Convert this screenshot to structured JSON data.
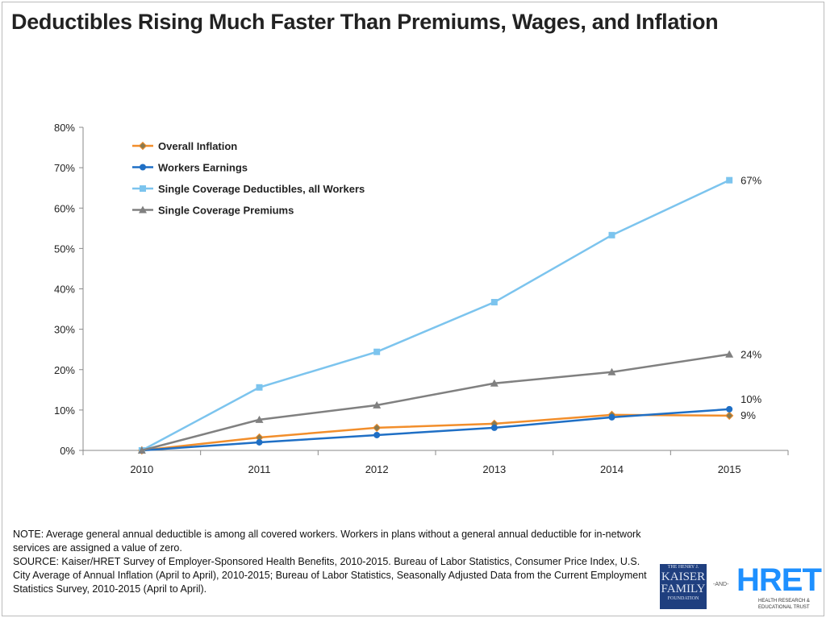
{
  "chart_data": {
    "type": "line",
    "title": "Deductibles Rising Much Faster Than Premiums, Wages, and Inflation",
    "categories": [
      "2010",
      "2011",
      "2012",
      "2013",
      "2014",
      "2015"
    ],
    "ylim": [
      0,
      80
    ],
    "yticks": [
      "0%",
      "10%",
      "20%",
      "30%",
      "40%",
      "50%",
      "60%",
      "70%",
      "80%"
    ],
    "grid": false,
    "legend_placement": "top-left",
    "series": [
      {
        "name": "Overall Inflation",
        "color": "#f28e2b",
        "marker": "diamond",
        "values": [
          0,
          3.2,
          5.6,
          6.6,
          8.8,
          8.6
        ],
        "end_label": "9%"
      },
      {
        "name": "Workers Earnings",
        "color": "#1f6fc5",
        "marker": "circle",
        "values": [
          0,
          2.0,
          3.8,
          5.6,
          8.2,
          10.2
        ],
        "end_label": "10%"
      },
      {
        "name": "Single Coverage Deductibles, all Workers",
        "color": "#7cc4ee",
        "marker": "square",
        "values": [
          0,
          15.6,
          24.4,
          36.7,
          53.3,
          66.9
        ],
        "end_label": "67%"
      },
      {
        "name": "Single Coverage Premiums",
        "color": "#808080",
        "marker": "triangle",
        "values": [
          0,
          7.6,
          11.2,
          16.6,
          19.4,
          23.8
        ],
        "end_label": "24%"
      }
    ]
  },
  "notes": {
    "note": "NOTE:  Average general annual deductible  is among  all covered workers. Workers in plans without a general annual deductible for in-network services are assigned a value of zero.",
    "source": "SOURCE:  Kaiser/HRET Survey of Employer-Sponsored Health Benefits, 2010-2015.  Bureau of Labor Statistics, Consumer Price Index, U.S. City Average of Annual Inflation (April to April), 2010-2015; Bureau of Labor Statistics, Seasonally Adjusted Data from the Current Employment Statistics Survey, 2010-2015 (April to April)."
  },
  "logos": {
    "kff": {
      "line1": "THE HENRY J.",
      "line2": "KAISER",
      "line3": "FAMILY",
      "line4": "FOUNDATION"
    },
    "and": "-AND-",
    "hret": {
      "name": "HRET",
      "sub": "HEALTH RESEARCH & EDUCATIONAL TRUST"
    }
  }
}
